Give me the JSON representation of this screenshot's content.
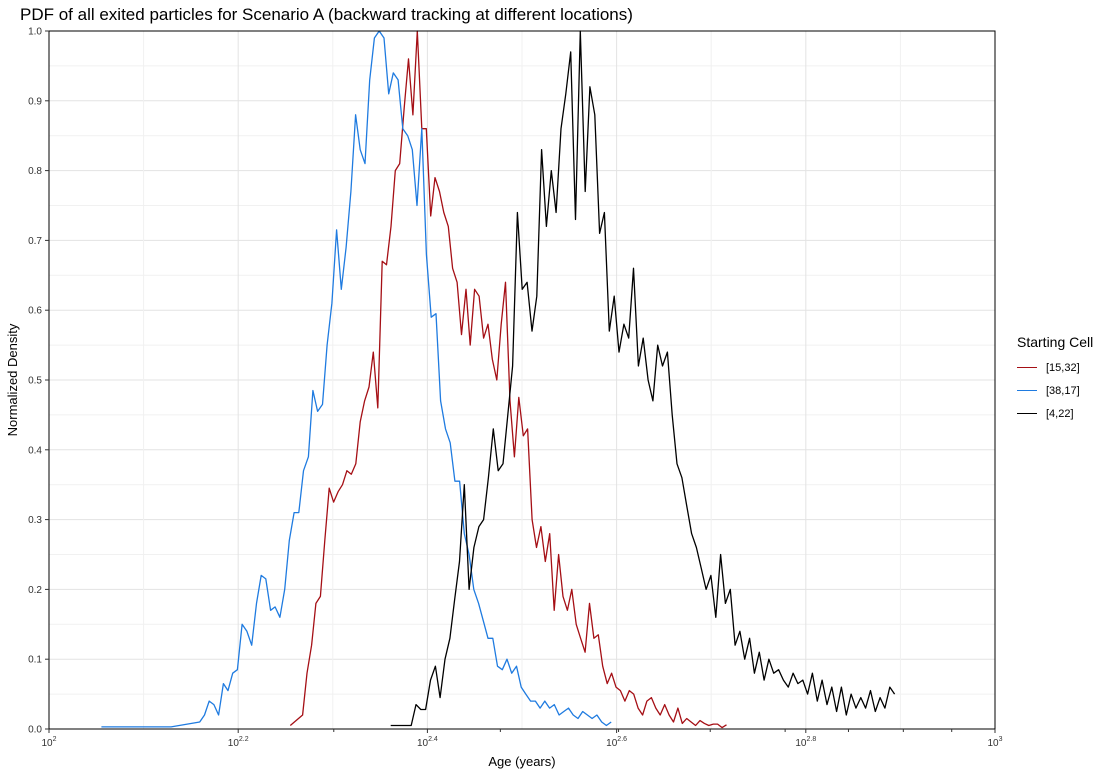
{
  "chart_data": {
    "type": "line",
    "title": "PDF of all exited particles for Scenario A (backward tracking at different locations)",
    "xlabel": "Age (years)",
    "ylabel": "Normalized Density",
    "x_scale": "log10",
    "xlim": [
      100,
      1000
    ],
    "ylim": [
      0,
      1.0
    ],
    "x_ticks": [
      {
        "value": 100,
        "base": "10",
        "exp": "2"
      },
      {
        "value": 158.49,
        "base": "10",
        "exp": "2.2"
      },
      {
        "value": 251.19,
        "base": "10",
        "exp": "2.4"
      },
      {
        "value": 398.11,
        "base": "10",
        "exp": "2.6"
      },
      {
        "value": 630.96,
        "base": "10",
        "exp": "2.8"
      },
      {
        "value": 1000,
        "base": "10",
        "exp": "3"
      }
    ],
    "y_ticks": [
      "0.0",
      "0.1",
      "0.2",
      "0.3",
      "0.4",
      "0.5",
      "0.6",
      "0.7",
      "0.8",
      "0.9",
      "1.0"
    ],
    "grid": true,
    "legend": {
      "title": "Starting Cell",
      "position": "right"
    },
    "series": [
      {
        "name": "[15,32]",
        "color": "#a50f15",
        "x": [
          179.9,
          185.4,
          187.4,
          189.5,
          191.5,
          193.6,
          195.7,
          197.8,
          199.9,
          202.1,
          204.3,
          206.5,
          208.7,
          211.0,
          213.3,
          215.6,
          217.9,
          220.2,
          222.6,
          225.0,
          227.4,
          229.9,
          232.3,
          234.8,
          237.4,
          239.9,
          242.5,
          245.1,
          247.8,
          250.5,
          253.2,
          255.9,
          258.7,
          261.4,
          264.3,
          267.1,
          270.0,
          272.9,
          275.9,
          278.8,
          281.8,
          284.9,
          288.0,
          291.1,
          294.2,
          297.4,
          300.6,
          303.8,
          307.1,
          310.4,
          313.8,
          317.2,
          320.6,
          324.1,
          327.6,
          331.1,
          334.7,
          338.3,
          342.0,
          345.7,
          349.4,
          353.2,
          357.0,
          360.8,
          364.7,
          368.7,
          372.7,
          376.7,
          380.8,
          384.9,
          389.1,
          393.3,
          397.5,
          401.8,
          406.2,
          410.6,
          415.0,
          419.5,
          424.1,
          428.6,
          433.3,
          438.0,
          442.7,
          447.5,
          452.4,
          457.2,
          462.2,
          467.2,
          472.2,
          477.3,
          482.5,
          487.7,
          493.0,
          498.3,
          503.7,
          509.1,
          514.6,
          520.2
        ],
        "y": [
          0.005,
          0.02,
          0.08,
          0.12,
          0.18,
          0.19,
          0.27,
          0.345,
          0.325,
          0.34,
          0.35,
          0.37,
          0.365,
          0.38,
          0.44,
          0.47,
          0.49,
          0.54,
          0.46,
          0.67,
          0.665,
          0.72,
          0.8,
          0.81,
          0.89,
          0.96,
          0.88,
          1.0,
          0.86,
          0.86,
          0.735,
          0.79,
          0.77,
          0.74,
          0.72,
          0.66,
          0.64,
          0.565,
          0.63,
          0.55,
          0.63,
          0.62,
          0.56,
          0.58,
          0.53,
          0.5,
          0.58,
          0.64,
          0.47,
          0.39,
          0.475,
          0.42,
          0.43,
          0.3,
          0.26,
          0.29,
          0.24,
          0.28,
          0.17,
          0.25,
          0.19,
          0.17,
          0.2,
          0.15,
          0.13,
          0.11,
          0.18,
          0.13,
          0.135,
          0.09,
          0.065,
          0.08,
          0.06,
          0.055,
          0.04,
          0.055,
          0.05,
          0.03,
          0.02,
          0.04,
          0.045,
          0.03,
          0.02,
          0.035,
          0.02,
          0.01,
          0.03,
          0.008,
          0.015,
          0.01,
          0.005,
          0.012,
          0.008,
          0.005,
          0.007,
          0.007,
          0.002,
          0.006
        ]
      },
      {
        "name": "[38,17]",
        "color": "#1f7be0",
        "x": [
          113.6,
          134.6,
          144.3,
          146.0,
          147.7,
          149.4,
          151.1,
          152.9,
          154.6,
          156.4,
          158.2,
          160.0,
          161.9,
          163.8,
          165.7,
          167.6,
          169.5,
          171.5,
          173.4,
          175.4,
          177.5,
          179.5,
          181.6,
          183.7,
          185.8,
          188.0,
          190.1,
          192.3,
          194.6,
          196.8,
          199.1,
          201.4,
          203.7,
          206.1,
          208.5,
          210.9,
          213.3,
          215.8,
          218.3,
          220.8,
          223.4,
          226.0,
          228.6,
          231.2,
          233.9,
          236.6,
          239.4,
          242.1,
          244.9,
          247.8,
          250.6,
          253.5,
          256.5,
          259.4,
          262.5,
          265.5,
          268.6,
          271.7,
          274.8,
          278.0,
          281.2,
          284.5,
          287.8,
          291.1,
          294.5,
          297.9,
          301.4,
          304.9,
          308.4,
          312.0,
          315.6,
          319.2,
          322.9,
          326.7,
          330.5,
          334.3,
          338.2,
          342.1,
          346.1,
          350.1,
          354.1,
          358.2,
          362.4,
          366.6,
          370.8,
          375.1,
          379.5,
          383.9,
          388.3,
          392.9
        ],
        "y": [
          0.003,
          0.003,
          0.01,
          0.02,
          0.04,
          0.035,
          0.02,
          0.065,
          0.055,
          0.08,
          0.085,
          0.15,
          0.14,
          0.12,
          0.18,
          0.22,
          0.215,
          0.17,
          0.175,
          0.16,
          0.2,
          0.27,
          0.31,
          0.31,
          0.37,
          0.39,
          0.485,
          0.455,
          0.465,
          0.55,
          0.61,
          0.715,
          0.63,
          0.69,
          0.77,
          0.88,
          0.83,
          0.81,
          0.93,
          0.99,
          1.0,
          0.99,
          0.91,
          0.94,
          0.93,
          0.86,
          0.85,
          0.83,
          0.75,
          0.86,
          0.68,
          0.59,
          0.595,
          0.47,
          0.43,
          0.41,
          0.355,
          0.355,
          0.28,
          0.25,
          0.2,
          0.18,
          0.155,
          0.13,
          0.13,
          0.09,
          0.085,
          0.1,
          0.08,
          0.09,
          0.06,
          0.05,
          0.04,
          0.04,
          0.03,
          0.04,
          0.03,
          0.035,
          0.02,
          0.025,
          0.03,
          0.02,
          0.015,
          0.025,
          0.02,
          0.015,
          0.02,
          0.01,
          0.005,
          0.01
        ]
      },
      {
        "name": "[4,22]",
        "color": "#000000",
        "x": [
          229.7,
          241.5,
          244.3,
          247.2,
          250.1,
          253.1,
          256.1,
          259.1,
          262.2,
          265.3,
          268.4,
          271.6,
          274.8,
          278.0,
          281.3,
          284.7,
          288.0,
          291.4,
          294.9,
          298.4,
          301.9,
          305.5,
          309.1,
          312.7,
          316.4,
          320.2,
          324.0,
          327.8,
          331.7,
          335.6,
          339.6,
          343.6,
          347.7,
          351.8,
          356.0,
          360.2,
          364.4,
          368.8,
          373.1,
          377.5,
          382.0,
          386.5,
          391.1,
          395.8,
          400.4,
          405.2,
          410.0,
          414.8,
          419.8,
          424.7,
          429.8,
          434.9,
          440.0,
          445.2,
          450.5,
          455.8,
          461.2,
          466.7,
          472.2,
          477.8,
          483.5,
          489.2,
          495.0,
          500.8,
          506.8,
          512.8,
          518.8,
          525.0,
          531.2,
          537.5,
          543.8,
          550.3,
          556.8,
          563.4,
          570.0,
          576.8,
          583.6,
          590.5,
          597.5,
          604.6,
          611.7,
          619.0,
          626.3,
          633.7,
          641.2,
          648.8,
          656.5,
          664.3,
          672.1,
          680.1,
          688.1,
          696.3,
          704.5,
          712.8,
          721.3,
          729.8,
          738.5,
          747.2,
          756.1,
          765.0,
          774.1,
          783.2
        ],
        "y": [
          0.005,
          0.005,
          0.035,
          0.028,
          0.028,
          0.07,
          0.09,
          0.045,
          0.1,
          0.13,
          0.185,
          0.24,
          0.35,
          0.2,
          0.26,
          0.29,
          0.3,
          0.36,
          0.43,
          0.37,
          0.38,
          0.45,
          0.52,
          0.74,
          0.63,
          0.64,
          0.57,
          0.62,
          0.83,
          0.72,
          0.8,
          0.74,
          0.86,
          0.91,
          0.97,
          0.73,
          1.0,
          0.77,
          0.92,
          0.88,
          0.71,
          0.74,
          0.57,
          0.62,
          0.54,
          0.58,
          0.56,
          0.66,
          0.52,
          0.56,
          0.5,
          0.47,
          0.55,
          0.52,
          0.54,
          0.45,
          0.38,
          0.36,
          0.32,
          0.28,
          0.26,
          0.23,
          0.2,
          0.22,
          0.16,
          0.25,
          0.18,
          0.2,
          0.12,
          0.14,
          0.1,
          0.13,
          0.08,
          0.11,
          0.07,
          0.1,
          0.08,
          0.085,
          0.07,
          0.06,
          0.08,
          0.065,
          0.07,
          0.05,
          0.08,
          0.04,
          0.07,
          0.035,
          0.06,
          0.025,
          0.06,
          0.02,
          0.05,
          0.03,
          0.045,
          0.03,
          0.055,
          0.025,
          0.045,
          0.03,
          0.06,
          0.05
        ]
      }
    ]
  }
}
